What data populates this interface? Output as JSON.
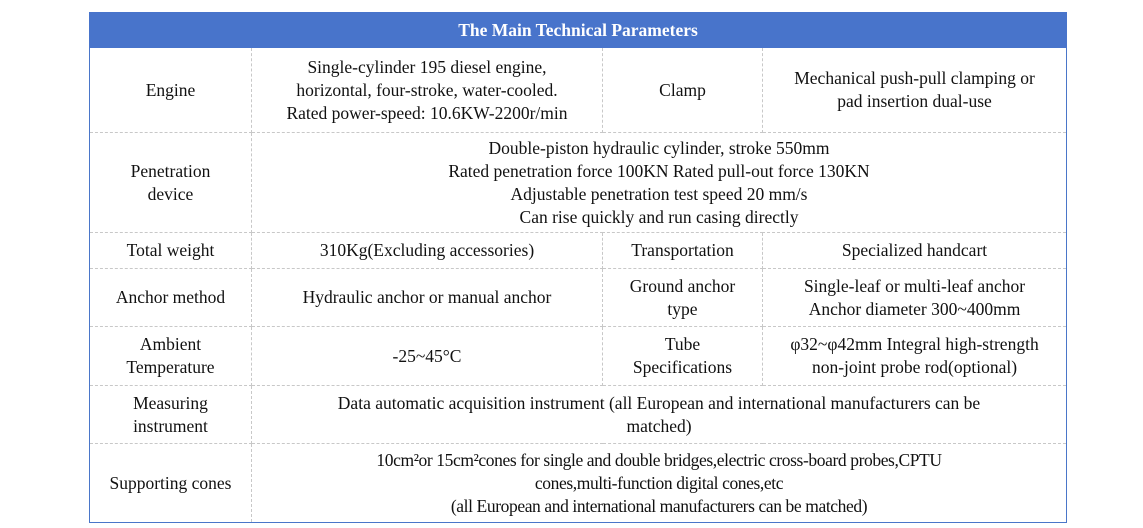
{
  "title": "The Main Technical Parameters",
  "rows": {
    "engine": {
      "label": "Engine",
      "value": [
        "Single-cylinder 195 diesel engine,",
        "horizontal, four-stroke, water-cooled.",
        "Rated power-speed: 10.6KW-2200r/min"
      ],
      "label2": "Clamp",
      "value2": [
        "Mechanical push-pull clamping or",
        "pad insertion dual-use"
      ]
    },
    "penetration": {
      "label": [
        "Penetration",
        "device"
      ],
      "value": [
        "Double-piston hydraulic cylinder, stroke 550mm",
        "Rated penetration force 100KN Rated pull-out force 130KN",
        "Adjustable penetration test speed 20 mm/s",
        "Can rise quickly and run casing directly"
      ]
    },
    "weight": {
      "label": "Total weight",
      "value": "310Kg(Excluding accessories)",
      "label2": "Transportation",
      "value2": "Specialized handcart"
    },
    "anchor": {
      "label": "Anchor method",
      "value": "Hydraulic anchor or manual anchor",
      "label2": [
        "Ground anchor",
        "type"
      ],
      "value2": [
        "Single-leaf or multi-leaf anchor",
        "Anchor diameter 300~400mm"
      ]
    },
    "ambient": {
      "label": [
        "Ambient",
        "Temperature"
      ],
      "value": "-25~45°C",
      "label2": [
        "Tube",
        "Specifications"
      ],
      "value2": [
        "φ32~φ42mm Integral high-strength",
        "non-joint probe rod(optional)"
      ]
    },
    "measuring": {
      "label": [
        "Measuring",
        "instrument"
      ],
      "value": [
        "Data automatic acquisition instrument (all European and international manufacturers can be",
        "matched)"
      ]
    },
    "cones": {
      "label": "Supporting cones",
      "value": [
        "10cm²or 15cm²cones for single and double bridges,electric cross-board probes,CPTU",
        "cones,multi-function digital cones,etc",
        "(all European and international manufacturers can be matched)"
      ]
    }
  }
}
